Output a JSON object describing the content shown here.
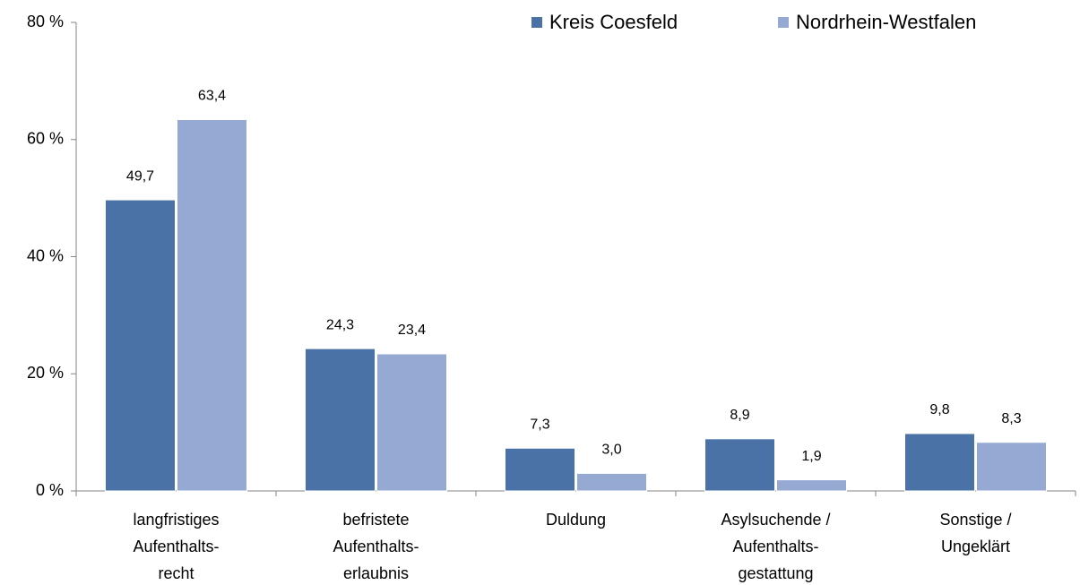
{
  "chart_data": {
    "type": "bar",
    "categories": [
      [
        "langfristiges",
        "Aufenthalts-",
        "recht"
      ],
      [
        "befristete",
        "Aufenthalts-",
        "erlaubnis"
      ],
      [
        "Duldung"
      ],
      [
        "Asylsuchende /",
        "Aufenthalts-",
        "gestattung"
      ],
      [
        "Sonstige /",
        "Ungeklärt"
      ]
    ],
    "series": [
      {
        "name": "Kreis Coesfeld",
        "color": "#4a72a6",
        "values": [
          49.7,
          24.3,
          7.3,
          8.9,
          9.8
        ],
        "value_labels": [
          "49,7",
          "24,3",
          "7,3",
          "8,9",
          "9,8"
        ]
      },
      {
        "name": "Nordrhein-Westfalen",
        "color": "#95a9d2",
        "values": [
          63.4,
          23.4,
          3.0,
          1.9,
          8.3
        ],
        "value_labels": [
          "63,4",
          "23,4",
          "3,0",
          "1,9",
          "8,3"
        ]
      }
    ],
    "ylim": [
      0,
      80
    ],
    "yticks": [
      {
        "value": 0,
        "label": "0 %"
      },
      {
        "value": 20,
        "label": "20 %"
      },
      {
        "value": 40,
        "label": "40 %"
      },
      {
        "value": 60,
        "label": "60 %"
      },
      {
        "value": 80,
        "label": "80 %"
      }
    ],
    "legend": "top-right"
  }
}
